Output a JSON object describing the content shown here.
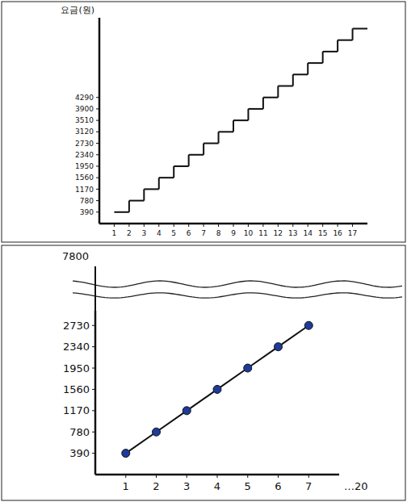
{
  "chart_data": [
    {
      "type": "step",
      "ylabel": "요금(원)",
      "x": [
        1,
        2,
        3,
        4,
        5,
        6,
        7,
        8,
        9,
        10,
        11,
        12,
        13,
        14,
        15,
        16,
        17
      ],
      "values": [
        390,
        780,
        1170,
        1560,
        1950,
        2340,
        2730,
        3120,
        3510,
        3900,
        4290,
        4680,
        5070,
        5460,
        5850,
        6240,
        6630
      ],
      "color": "#111111",
      "xlim": [
        0,
        18
      ],
      "ylim": [
        0,
        7000
      ],
      "xticks": [
        1,
        2,
        3,
        4,
        5,
        6,
        7,
        8,
        9,
        10,
        11,
        12,
        13,
        14,
        15,
        16,
        17
      ],
      "yticks": [
        390,
        780,
        1170,
        1560,
        1950,
        2340,
        2730,
        3120,
        3510,
        3900,
        4290
      ]
    },
    {
      "type": "line",
      "x": [
        1,
        2,
        3,
        4,
        5,
        6,
        7
      ],
      "values": [
        390,
        780,
        1170,
        1560,
        1950,
        2340,
        2730
      ],
      "color": "#111111",
      "marker": "circle",
      "xlim": [
        0,
        8
      ],
      "ylim": [
        0,
        3000
      ],
      "xticks": [
        1,
        2,
        3,
        4,
        5,
        6,
        7
      ],
      "yticks": [
        390,
        780,
        1170,
        1560,
        1950,
        2340,
        2730
      ],
      "annotations": [
        "7800",
        "…20"
      ]
    }
  ]
}
